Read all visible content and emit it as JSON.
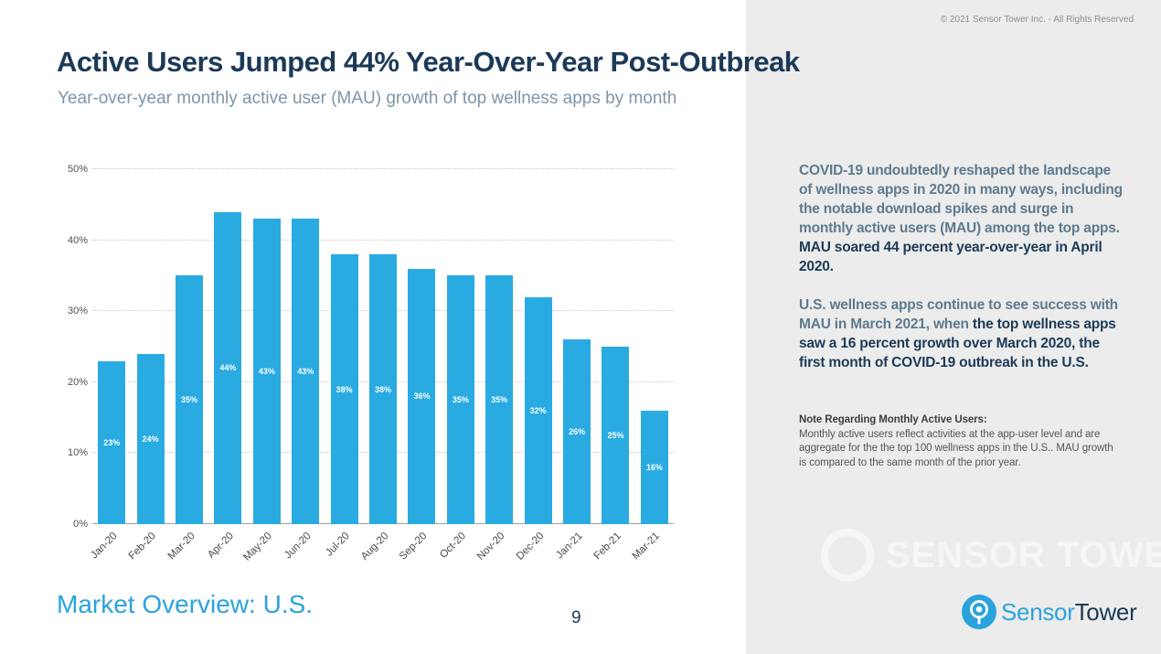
{
  "page": {
    "copyright": "© 2021 Sensor Tower Inc. - All Rights Reserved",
    "title": "Active Users Jumped 44% Year-Over-Year Post-Outbreak",
    "subtitle": "Year-over-year monthly active user (MAU) growth of top wellness apps by month",
    "footer_left": "Market Overview: U.S.",
    "page_number": "9"
  },
  "chart_data": {
    "type": "bar",
    "title": "Year-over-year monthly active user (MAU) growth of top wellness apps by month",
    "categories": [
      "Jan-20",
      "Feb-20",
      "Mar-20",
      "Apr-20",
      "May-20",
      "Jun-20",
      "Jul-20",
      "Aug-20",
      "Sep-20",
      "Oct-20",
      "Nov-20",
      "Dec-20",
      "Jan-21",
      "Feb-21",
      "Mar-21"
    ],
    "values": [
      23,
      24,
      35,
      44,
      43,
      43,
      38,
      38,
      36,
      35,
      35,
      32,
      26,
      25,
      16
    ],
    "value_labels": [
      "23%",
      "24%",
      "35%",
      "44%",
      "43%",
      "43%",
      "38%",
      "38%",
      "36%",
      "35%",
      "35%",
      "32%",
      "26%",
      "25%",
      "16%"
    ],
    "xlabel": "",
    "ylabel": "",
    "ylim": [
      0,
      50
    ],
    "yticks": [
      0,
      10,
      20,
      30,
      40,
      50
    ],
    "ytick_labels": [
      "0%",
      "10%",
      "20%",
      "30%",
      "40%",
      "50%"
    ],
    "bar_color": "#29abe2",
    "grid": "horizontal dotted",
    "legend": "none"
  },
  "sidebar": {
    "paragraph1": [
      {
        "text": "COVID-19 undoubtedly reshaped the landscape of wellness apps in 2020 in many ways, including the notable download spikes and surge in monthly active users (MAU) among the top apps. ",
        "emph": false
      },
      {
        "text": "MAU soared 44 percent year-over-year in April 2020.",
        "emph": true
      }
    ],
    "paragraph2": [
      {
        "text": "U.S. wellness apps continue to see success with MAU in March 2021, when ",
        "emph": false
      },
      {
        "text": "the top wellness apps saw a 16 percent growth over March 2020, the first month of COVID-19 outbreak in the U.S.",
        "emph": true
      }
    ],
    "note_heading": "Note Regarding Monthly Active Users:",
    "note_body": "Monthly active users reflect activities at the app-user level and are aggregate for the the top 100 wellness apps in the U.S.. MAU growth is compared to the same month of the prior year."
  },
  "logo": {
    "brand_first": "Sensor",
    "brand_second": "Tower"
  },
  "colors": {
    "accent_blue": "#29abe2",
    "navy": "#1c3a57",
    "panel_gray": "#ececec"
  }
}
